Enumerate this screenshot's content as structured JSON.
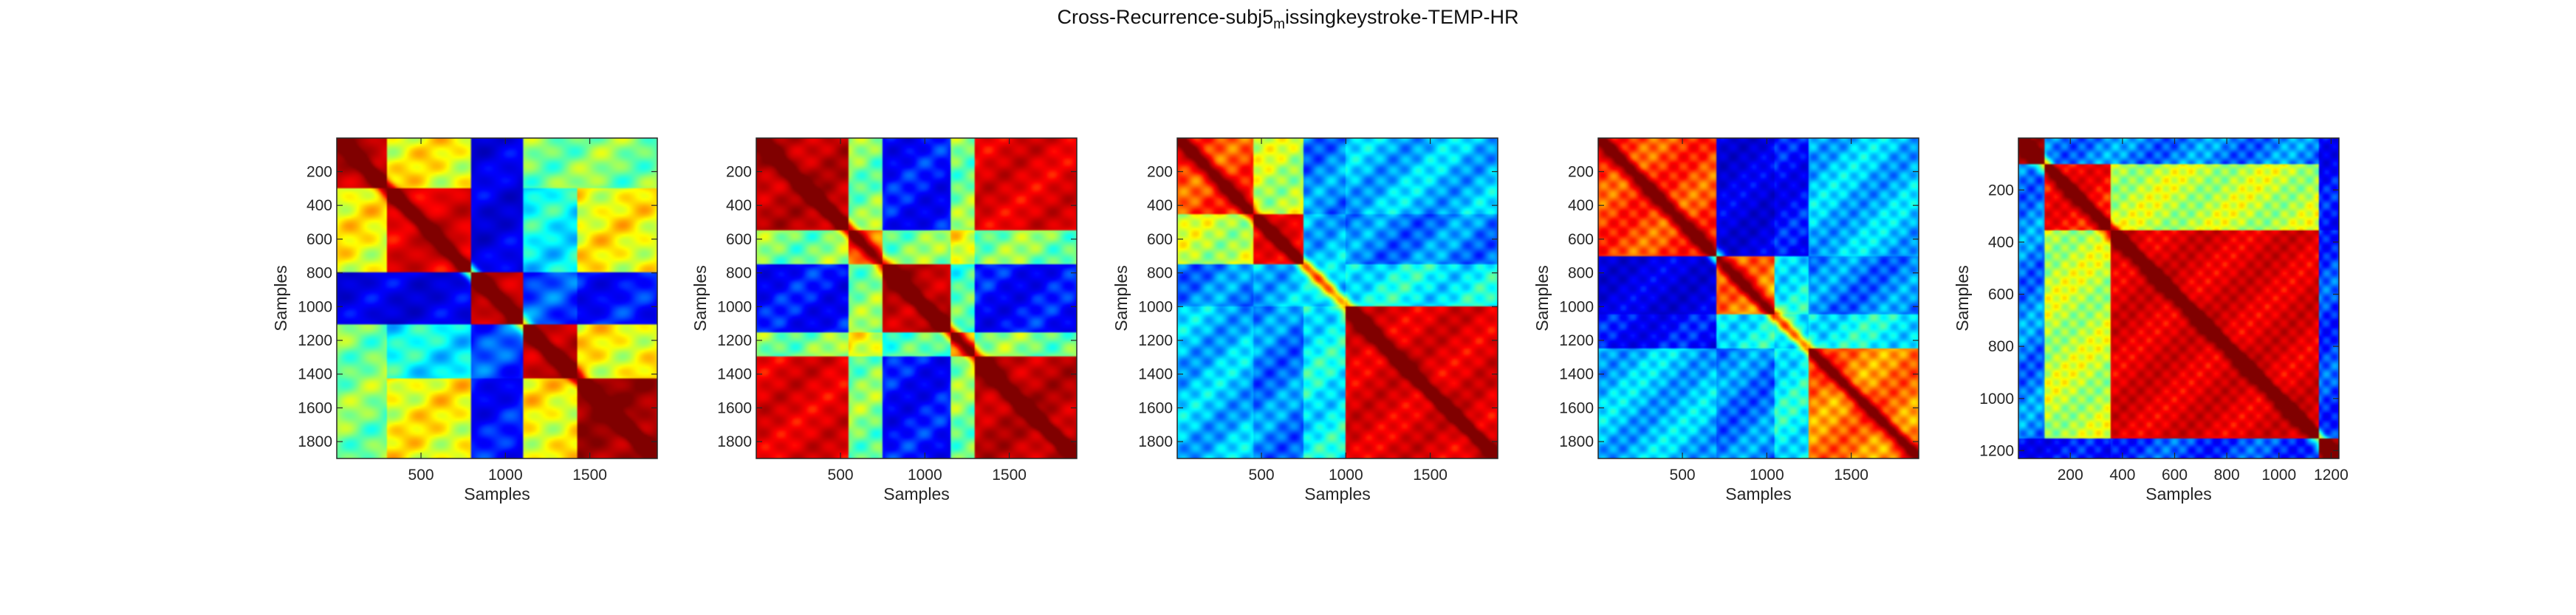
{
  "figure": {
    "title_main": "Cross-Recurrence-subj5",
    "title_sub": "m",
    "title_rest": "issingkeystroke-TEMP-HR"
  },
  "colormap": {
    "name": "jet",
    "stops": [
      "#00008f",
      "#0000ff",
      "#00ffff",
      "#ffff00",
      "#ff0000",
      "#800000"
    ]
  },
  "chart_data": [
    {
      "type": "heatmap",
      "title": "",
      "xlabel": "Samples",
      "ylabel": "Samples",
      "xlim": [
        1,
        1900
      ],
      "ylim": [
        1,
        1900
      ],
      "y_reversed": true,
      "xticks": [
        500,
        1000,
        1500
      ],
      "xtick_labels": [
        "500",
        "1000",
        "1500"
      ],
      "yticks": [
        200,
        400,
        600,
        800,
        1000,
        1200,
        1400,
        1600,
        1800
      ],
      "ytick_labels": [
        "200",
        "400",
        "600",
        "800",
        "1000",
        "1200",
        "1400",
        "1600",
        "1800"
      ],
      "segments": [
        0,
        300,
        800,
        1100,
        1420,
        1900
      ],
      "block_similarity": [
        [
          0.9,
          0.6,
          0.15,
          0.5,
          0.5
        ],
        [
          0.6,
          0.85,
          0.15,
          0.4,
          0.6
        ],
        [
          0.15,
          0.15,
          0.9,
          0.25,
          0.2
        ],
        [
          0.5,
          0.4,
          0.25,
          0.9,
          0.6
        ],
        [
          0.5,
          0.6,
          0.2,
          0.6,
          0.95
        ]
      ]
    },
    {
      "type": "heatmap",
      "title": "",
      "xlabel": "Samples",
      "ylabel": "Samples",
      "xlim": [
        1,
        1900
      ],
      "ylim": [
        1,
        1900
      ],
      "y_reversed": true,
      "xticks": [
        500,
        1000,
        1500
      ],
      "xtick_labels": [
        "500",
        "1000",
        "1500"
      ],
      "yticks": [
        200,
        400,
        600,
        800,
        1000,
        1200,
        1400,
        1600,
        1800
      ],
      "ytick_labels": [
        "200",
        "400",
        "600",
        "800",
        "1000",
        "1200",
        "1400",
        "1600",
        "1800"
      ],
      "segments": [
        0,
        550,
        750,
        1150,
        1300,
        1900
      ],
      "block_similarity": [
        [
          0.9,
          0.5,
          0.2,
          0.5,
          0.85
        ],
        [
          0.5,
          0.7,
          0.5,
          0.6,
          0.5
        ],
        [
          0.2,
          0.5,
          0.9,
          0.45,
          0.2
        ],
        [
          0.5,
          0.6,
          0.45,
          0.7,
          0.5
        ],
        [
          0.85,
          0.5,
          0.2,
          0.5,
          0.9
        ]
      ]
    },
    {
      "type": "heatmap",
      "title": "",
      "xlabel": "Samples",
      "ylabel": "Samples",
      "xlim": [
        1,
        1900
      ],
      "ylim": [
        1,
        1900
      ],
      "y_reversed": true,
      "xticks": [
        500,
        1000,
        1500
      ],
      "xtick_labels": [
        "500",
        "1000",
        "1500"
      ],
      "yticks": [
        200,
        400,
        600,
        800,
        1000,
        1200,
        1400,
        1600,
        1800
      ],
      "ytick_labels": [
        "200",
        "400",
        "600",
        "800",
        "1000",
        "1200",
        "1400",
        "1600",
        "1800"
      ],
      "segments": [
        0,
        450,
        750,
        1000,
        1900
      ],
      "block_similarity": [
        [
          0.75,
          0.55,
          0.3,
          0.35
        ],
        [
          0.55,
          0.8,
          0.35,
          0.3
        ],
        [
          0.3,
          0.35,
          0.35,
          0.4
        ],
        [
          0.35,
          0.3,
          0.4,
          0.85
        ]
      ]
    },
    {
      "type": "heatmap",
      "title": "",
      "xlabel": "Samples",
      "ylabel": "Samples",
      "xlim": [
        1,
        1900
      ],
      "ylim": [
        1,
        1900
      ],
      "y_reversed": true,
      "xticks": [
        500,
        1000,
        1500
      ],
      "xtick_labels": [
        "500",
        "1000",
        "1500"
      ],
      "yticks": [
        200,
        400,
        600,
        800,
        1000,
        1200,
        1400,
        1600,
        1800
      ],
      "ytick_labels": [
        "200",
        "400",
        "600",
        "800",
        "1000",
        "1200",
        "1400",
        "1600",
        "1800"
      ],
      "segments": [
        0,
        700,
        1050,
        1250,
        1900
      ],
      "block_similarity": [
        [
          0.75,
          0.15,
          0.2,
          0.35
        ],
        [
          0.15,
          0.7,
          0.4,
          0.3
        ],
        [
          0.2,
          0.4,
          0.35,
          0.4
        ],
        [
          0.35,
          0.3,
          0.4,
          0.7
        ]
      ]
    },
    {
      "type": "heatmap",
      "title": "",
      "xlabel": "Samples",
      "ylabel": "Samples",
      "xlim": [
        1,
        1230
      ],
      "ylim": [
        1,
        1230
      ],
      "y_reversed": true,
      "xticks": [
        200,
        400,
        600,
        800,
        1000,
        1200
      ],
      "xtick_labels": [
        "200",
        "400",
        "600",
        "800",
        "1000",
        "1200"
      ],
      "yticks": [
        200,
        400,
        600,
        800,
        1000,
        1200
      ],
      "ytick_labels": [
        "200",
        "400",
        "600",
        "800",
        "1000",
        "1200"
      ],
      "segments": [
        0,
        100,
        350,
        1150,
        1230
      ],
      "block_similarity": [
        [
          0.9,
          0.3,
          0.3,
          0.2
        ],
        [
          0.3,
          0.8,
          0.55,
          0.2
        ],
        [
          0.3,
          0.55,
          0.85,
          0.25
        ],
        [
          0.2,
          0.2,
          0.25,
          0.9
        ]
      ]
    }
  ]
}
